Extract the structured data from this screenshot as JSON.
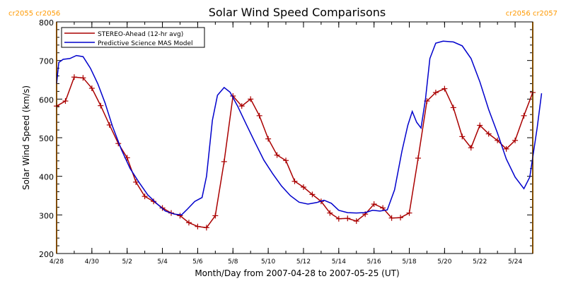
{
  "chart_data": {
    "type": "line",
    "title": "Solar Wind Speed Comparisons",
    "xlabel": "Month/Day from 2007-04-28 to 2007-05-25 (UT)",
    "ylabel": "Solar Wind Speed (km/s)",
    "xlim": [
      "2007-04-28",
      "2007-05-25"
    ],
    "ylim": [
      200,
      800
    ],
    "yticks": [
      200,
      300,
      400,
      500,
      600,
      700,
      800
    ],
    "xtick_labels": [
      "4/28",
      "4/30",
      "5/2",
      "5/4",
      "5/6",
      "5/8",
      "5/10",
      "5/12",
      "5/14",
      "5/16",
      "5/18",
      "5/20",
      "5/22",
      "5/24"
    ],
    "xtick_dates": [
      "2007-04-28",
      "2007-04-30",
      "2007-05-02",
      "2007-05-04",
      "2007-05-06",
      "2007-05-08",
      "2007-05-10",
      "2007-05-12",
      "2007-05-14",
      "2007-05-16",
      "2007-05-18",
      "2007-05-20",
      "2007-05-22",
      "2007-05-24"
    ],
    "legend": {
      "placement": "top-left",
      "entries": [
        "STEREO-Ahead (12-hr avg)",
        "Predictive Science MAS Model"
      ]
    },
    "carrington": {
      "color": "#ff9900",
      "markers": [
        {
          "date": "2007-04-28",
          "label": "cr2055 cr2056"
        },
        {
          "date": "2007-05-25",
          "label": "cr2056 cr2057"
        }
      ]
    },
    "grid": false,
    "series": [
      {
        "name": "STEREO-Ahead (12-hr avg)",
        "color": "#aa0000",
        "marker": "+",
        "points": [
          [
            "2007-04-28 00:00",
            582
          ],
          [
            "2007-04-28 12:00",
            595
          ],
          [
            "2007-04-29 00:00",
            657
          ],
          [
            "2007-04-29 12:00",
            655
          ],
          [
            "2007-04-30 00:00",
            628
          ],
          [
            "2007-04-30 12:00",
            583
          ],
          [
            "2007-05-01 00:00",
            533
          ],
          [
            "2007-05-01 12:00",
            485
          ],
          [
            "2007-05-02 00:00",
            448
          ],
          [
            "2007-05-02 12:00",
            385
          ],
          [
            "2007-05-03 00:00",
            348
          ],
          [
            "2007-05-03 12:00",
            335
          ],
          [
            "2007-05-04 00:00",
            318
          ],
          [
            "2007-05-04 12:00",
            305
          ],
          [
            "2007-05-05 00:00",
            298
          ],
          [
            "2007-05-05 12:00",
            280
          ],
          [
            "2007-05-06 00:00",
            270
          ],
          [
            "2007-05-06 12:00",
            267
          ],
          [
            "2007-05-07 00:00",
            298
          ],
          [
            "2007-05-07 12:00",
            438
          ],
          [
            "2007-05-08 00:00",
            608
          ],
          [
            "2007-05-08 12:00",
            582
          ],
          [
            "2007-05-09 00:00",
            600
          ],
          [
            "2007-05-09 12:00",
            557
          ],
          [
            "2007-05-10 00:00",
            497
          ],
          [
            "2007-05-10 12:00",
            455
          ],
          [
            "2007-05-11 00:00",
            441
          ],
          [
            "2007-05-11 12:00",
            387
          ],
          [
            "2007-05-12 00:00",
            372
          ],
          [
            "2007-05-12 12:00",
            353
          ],
          [
            "2007-05-13 00:00",
            335
          ],
          [
            "2007-05-13 12:00",
            305
          ],
          [
            "2007-05-14 00:00",
            290
          ],
          [
            "2007-05-14 12:00",
            291
          ],
          [
            "2007-05-15 00:00",
            284
          ],
          [
            "2007-05-15 12:00",
            302
          ],
          [
            "2007-05-16 00:00",
            328
          ],
          [
            "2007-05-16 12:00",
            318
          ],
          [
            "2007-05-17 00:00",
            292
          ],
          [
            "2007-05-17 12:00",
            293
          ],
          [
            "2007-05-18 00:00",
            305
          ],
          [
            "2007-05-18 12:00",
            447
          ],
          [
            "2007-05-19 00:00",
            595
          ],
          [
            "2007-05-19 12:00",
            617
          ],
          [
            "2007-05-20 00:00",
            627
          ],
          [
            "2007-05-20 12:00",
            578
          ],
          [
            "2007-05-21 00:00",
            503
          ],
          [
            "2007-05-21 12:00",
            474
          ],
          [
            "2007-05-22 00:00",
            532
          ],
          [
            "2007-05-22 12:00",
            510
          ],
          [
            "2007-05-23 00:00",
            493
          ],
          [
            "2007-05-23 12:00",
            471
          ],
          [
            "2007-05-24 00:00",
            493
          ],
          [
            "2007-05-24 12:00",
            557
          ],
          [
            "2007-05-25 00:00",
            617
          ]
        ]
      },
      {
        "name": "Predictive Science MAS Model",
        "color": "#0000cc",
        "marker": "none",
        "points": [
          [
            "2007-04-28 00:00",
            640
          ],
          [
            "2007-04-28 03:00",
            695
          ],
          [
            "2007-04-28 09:00",
            703
          ],
          [
            "2007-04-28 18:00",
            705
          ],
          [
            "2007-04-29 03:00",
            713
          ],
          [
            "2007-04-29 12:00",
            710
          ],
          [
            "2007-04-29 22:00",
            680
          ],
          [
            "2007-04-30 08:00",
            640
          ],
          [
            "2007-04-30 18:00",
            590
          ],
          [
            "2007-05-01 04:00",
            530
          ],
          [
            "2007-05-01 16:00",
            470
          ],
          [
            "2007-05-02 04:00",
            420
          ],
          [
            "2007-05-02 16:00",
            385
          ],
          [
            "2007-05-03 04:00",
            352
          ],
          [
            "2007-05-03 16:00",
            330
          ],
          [
            "2007-05-04 04:00",
            310
          ],
          [
            "2007-05-04 16:00",
            302
          ],
          [
            "2007-05-05 02:00",
            300
          ],
          [
            "2007-05-05 10:00",
            315
          ],
          [
            "2007-05-05 20:00",
            335
          ],
          [
            "2007-05-06 06:00",
            345
          ],
          [
            "2007-05-06 12:00",
            400
          ],
          [
            "2007-05-06 20:00",
            545
          ],
          [
            "2007-05-07 03:00",
            610
          ],
          [
            "2007-05-07 12:00",
            630
          ],
          [
            "2007-05-07 20:00",
            618
          ],
          [
            "2007-05-08 06:00",
            583
          ],
          [
            "2007-05-08 18:00",
            535
          ],
          [
            "2007-05-09 06:00",
            488
          ],
          [
            "2007-05-09 18:00",
            442
          ],
          [
            "2007-05-10 06:00",
            407
          ],
          [
            "2007-05-10 18:00",
            375
          ],
          [
            "2007-05-11 06:00",
            350
          ],
          [
            "2007-05-11 18:00",
            333
          ],
          [
            "2007-05-12 06:00",
            328
          ],
          [
            "2007-05-12 18:00",
            332
          ],
          [
            "2007-05-13 04:00",
            338
          ],
          [
            "2007-05-13 14:00",
            330
          ],
          [
            "2007-05-14 00:00",
            312
          ],
          [
            "2007-05-14 12:00",
            306
          ],
          [
            "2007-05-15 00:00",
            305
          ],
          [
            "2007-05-15 12:00",
            306
          ],
          [
            "2007-05-15 22:00",
            312
          ],
          [
            "2007-05-16 08:00",
            310
          ],
          [
            "2007-05-16 18:00",
            313
          ],
          [
            "2007-05-17 04:00",
            365
          ],
          [
            "2007-05-17 14:00",
            465
          ],
          [
            "2007-05-17 22:00",
            532
          ],
          [
            "2007-05-18 04:00",
            568
          ],
          [
            "2007-05-18 10:00",
            540
          ],
          [
            "2007-05-18 16:00",
            525
          ],
          [
            "2007-05-18 22:00",
            600
          ],
          [
            "2007-05-19 04:00",
            705
          ],
          [
            "2007-05-19 12:00",
            745
          ],
          [
            "2007-05-19 22:00",
            750
          ],
          [
            "2007-05-20 12:00",
            748
          ],
          [
            "2007-05-21 00:00",
            738
          ],
          [
            "2007-05-21 12:00",
            705
          ],
          [
            "2007-05-22 00:00",
            645
          ],
          [
            "2007-05-22 12:00",
            573
          ],
          [
            "2007-05-23 00:00",
            512
          ],
          [
            "2007-05-23 12:00",
            445
          ],
          [
            "2007-05-24 00:00",
            398
          ],
          [
            "2007-05-24 12:00",
            368
          ],
          [
            "2007-05-24 20:00",
            398
          ],
          [
            "2007-05-25 06:00",
            525
          ],
          [
            "2007-05-25 12:00",
            615
          ]
        ]
      }
    ]
  }
}
